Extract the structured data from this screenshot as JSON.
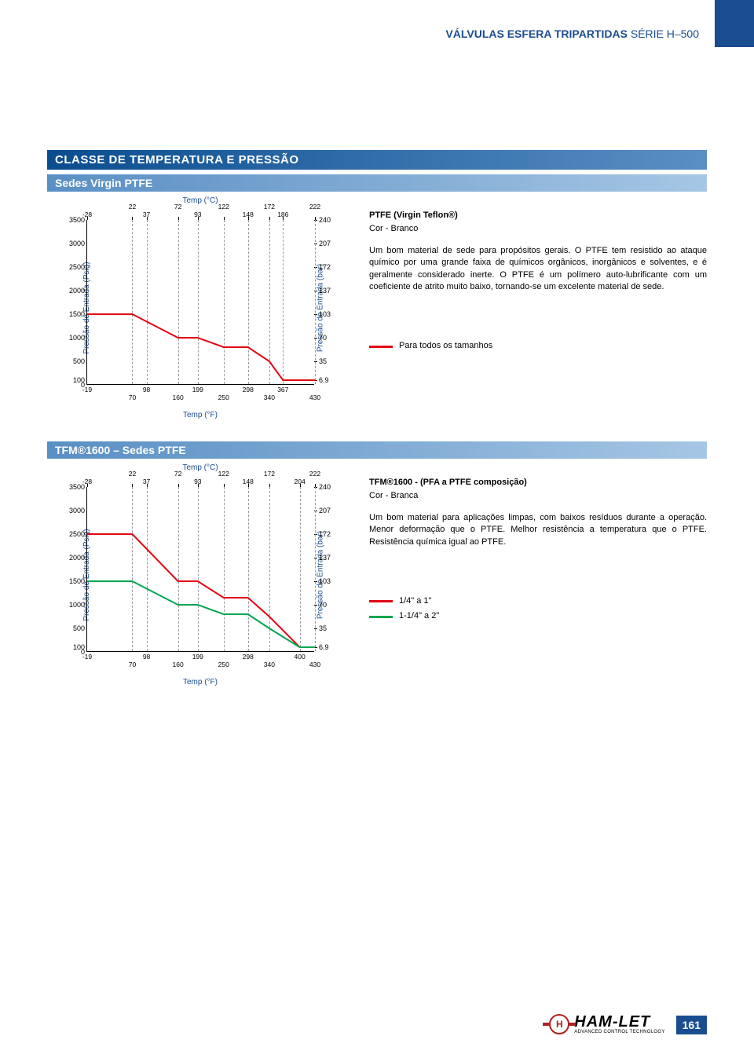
{
  "header": {
    "title_bold": "VÁLVULAS ESFERA TRIPARTIDAS",
    "title_thin": "SÉRIE H–500"
  },
  "side_tab_color": "#1a4d8f",
  "section_title": "CLASSE DE TEMPERATURA E PRESSÃO",
  "chart1": {
    "subtitle": "Sedes Virgin PTFE",
    "temp_c_label": "Temp (°C)",
    "temp_f_label": "Temp (°F)",
    "y_left_label": "Pressão de Entrada (Psig)",
    "y_right_label": "Pressão de Entrada (bar)",
    "y_ticks_left": [
      0,
      100,
      500,
      1000,
      1500,
      2000,
      2500,
      3000,
      3500
    ],
    "y_ticks_right": [
      6.9,
      35,
      70,
      103,
      137,
      172,
      207,
      240
    ],
    "x_ticks_top": [
      -28,
      22,
      37,
      72,
      93,
      122,
      148,
      172,
      186,
      222
    ],
    "x_ticks_bot": [
      -19,
      70,
      98,
      160,
      199,
      250,
      298,
      340,
      367,
      430
    ],
    "x_range_f": [
      -19,
      430
    ],
    "y_range_psig": [
      0,
      3500
    ],
    "series_red": {
      "color": "#e30613",
      "width": 2,
      "points_f_psig": [
        [
          -19,
          1500
        ],
        [
          70,
          1500
        ],
        [
          160,
          1000
        ],
        [
          199,
          1000
        ],
        [
          250,
          800
        ],
        [
          298,
          800
        ],
        [
          340,
          500
        ],
        [
          367,
          100
        ],
        [
          430,
          100
        ]
      ]
    },
    "text_title": "PTFE (Virgin Teflon®)",
    "text_subtitle": "Cor - Branco",
    "text_body": "Um bom material de sede para propósitos gerais. O PTFE tem resistido ao ataque químico por uma grande faixa de químicos orgânicos, inorgânicos e solventes, e é geralmente considerado inerte. O PTFE é um polímero auto-lubrificante com um coeficiente de atrito muito baixo, tornando-se um excelente material de sede.",
    "legend": [
      {
        "color": "#e30613",
        "label": "Para todos os tamanhos"
      }
    ]
  },
  "chart2": {
    "subtitle": "TFM®1600 – Sedes PTFE",
    "temp_c_label": "Temp (°C)",
    "temp_f_label": "Temp (°F)",
    "y_left_label": "Pressão de Entrada (Psig)",
    "y_right_label": "Pressão de Entrada (bar)",
    "y_ticks_left": [
      0,
      100,
      500,
      1000,
      1500,
      2000,
      2500,
      3000,
      3500
    ],
    "y_ticks_right": [
      6.9,
      35,
      70,
      103,
      137,
      172,
      207,
      240
    ],
    "x_ticks_top": [
      -28,
      22,
      37,
      72,
      93,
      122,
      148,
      172,
      204,
      222
    ],
    "x_ticks_bot": [
      -19,
      70,
      98,
      160,
      199,
      250,
      298,
      340,
      400,
      430
    ],
    "x_range_f": [
      -19,
      430
    ],
    "y_range_psig": [
      0,
      3500
    ],
    "series_red": {
      "color": "#e30613",
      "width": 2,
      "points_f_psig": [
        [
          -19,
          2500
        ],
        [
          70,
          2500
        ],
        [
          160,
          1500
        ],
        [
          199,
          1500
        ],
        [
          250,
          1150
        ],
        [
          298,
          1150
        ],
        [
          340,
          750
        ],
        [
          400,
          100
        ],
        [
          430,
          100
        ]
      ]
    },
    "series_green": {
      "color": "#00a651",
      "width": 2,
      "points_f_psig": [
        [
          -19,
          1500
        ],
        [
          70,
          1500
        ],
        [
          160,
          1000
        ],
        [
          199,
          1000
        ],
        [
          250,
          800
        ],
        [
          298,
          800
        ],
        [
          340,
          500
        ],
        [
          400,
          100
        ],
        [
          430,
          100
        ]
      ]
    },
    "text_title": "TFM®1600 - (PFA a PTFE composição)",
    "text_subtitle": "Cor - Branca",
    "text_body": "Um bom material para aplicações limpas, com baixos resíduos durante a operação.\nMenor deformação que o PTFE. Melhor resistência a temperatura que o PTFE. Resistência química igual ao PTFE.",
    "legend": [
      {
        "color": "#e30613",
        "label": "1/4\" a 1\""
      },
      {
        "color": "#00a651",
        "label": "1-1/4\" a 2\""
      }
    ]
  },
  "footer": {
    "logo_name": "HAM-LET",
    "logo_tag": "ADVANCED CONTROL TECHNOLOGY",
    "logo_badge": "H",
    "page_number": "161"
  },
  "colors": {
    "bar_start": "#0a4d8f",
    "bar_end": "#5a8fc4",
    "subbar_start": "#5a8fc4",
    "subbar_end": "#a6c6e4",
    "axis_text": "#1a4d8f"
  }
}
